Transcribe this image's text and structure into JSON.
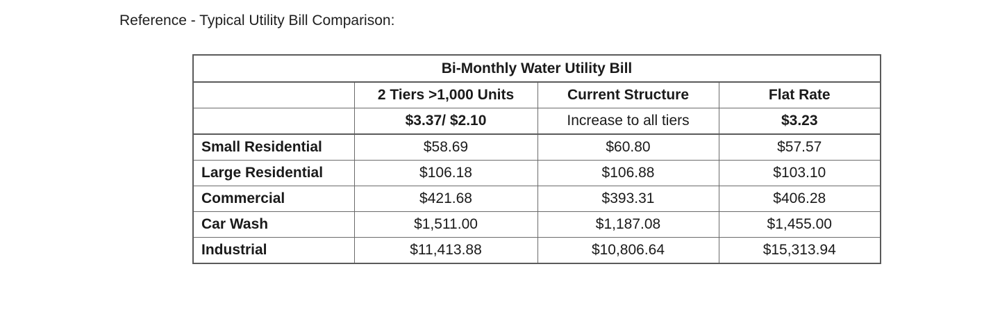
{
  "document": {
    "heading": "Reference - Typical Utility Bill Comparison:"
  },
  "table": {
    "title": "Bi-Monthly Water Utility Bill",
    "columns": [
      {
        "header": "2 Tiers >1,000 Units",
        "rate": "$3.37/ $2.10"
      },
      {
        "header": "Current Structure",
        "rate": "Increase to all tiers"
      },
      {
        "header": "Flat Rate",
        "rate": "$3.23"
      }
    ],
    "rows": [
      {
        "label": "Small Residential",
        "values": [
          "$58.69",
          "$60.80",
          "$57.57"
        ]
      },
      {
        "label": "Large Residential",
        "values": [
          "$106.18",
          "$106.88",
          "$103.10"
        ]
      },
      {
        "label": "Commercial",
        "values": [
          "$421.68",
          "$393.31",
          "$406.28"
        ]
      },
      {
        "label": "Car Wash",
        "values": [
          "$1,511.00",
          "$1,187.08",
          "$1,455.00"
        ]
      },
      {
        "label": "Industrial",
        "values": [
          "$11,413.88",
          "$10,806.64",
          "$15,313.94"
        ]
      }
    ]
  }
}
